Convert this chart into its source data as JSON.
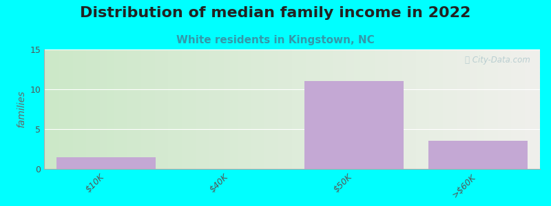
{
  "title": "Distribution of median family income in 2022",
  "subtitle": "White residents in Kingstown, NC",
  "categories": [
    "$10K",
    "$40K",
    "$50K",
    ">$60K"
  ],
  "values": [
    1.5,
    0,
    11,
    3.5
  ],
  "bar_color": "#c4a8d4",
  "ylabel": "families",
  "ylim": [
    0,
    15
  ],
  "yticks": [
    0,
    5,
    10,
    15
  ],
  "background_color": "#00ffff",
  "plot_bg_gradient_left": "#cce8c8",
  "plot_bg_gradient_right": "#f0f0ec",
  "title_fontsize": 16,
  "subtitle_fontsize": 11,
  "subtitle_color": "#3399aa",
  "watermark": "ⓘ City-Data.com",
  "bar_width": 0.8,
  "n_bars": 4
}
